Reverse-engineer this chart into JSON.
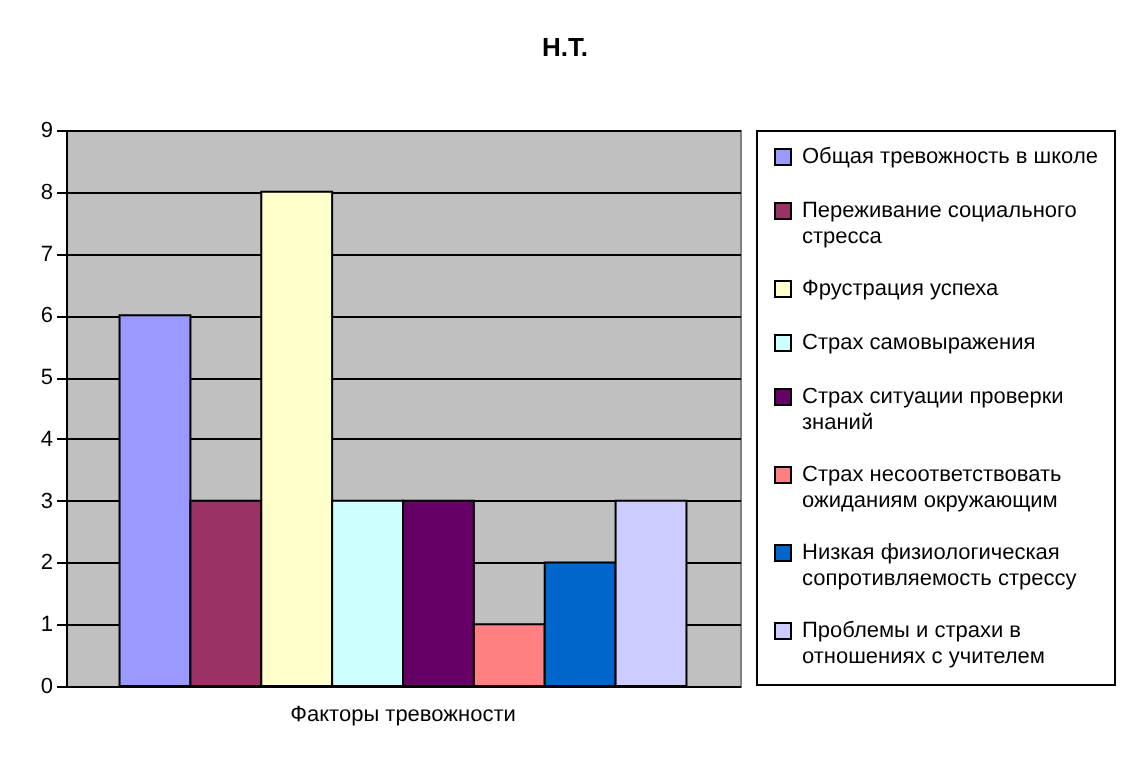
{
  "chart_data": {
    "type": "bar",
    "title": "Н.Т.",
    "categories": [
      "Факторы тревожности"
    ],
    "ylim": [
      0,
      9
    ],
    "yticks": [
      0,
      1,
      2,
      3,
      4,
      5,
      6,
      7,
      8,
      9
    ],
    "grid": "y",
    "legend": "right",
    "series": [
      {
        "name": "Общая тревожность в школе",
        "color": "#9999ff",
        "values": [
          6
        ]
      },
      {
        "name": "Переживание социального стресса",
        "color": "#993366",
        "values": [
          3
        ]
      },
      {
        "name": "Фрустрация успеха",
        "color": "#ffffcc",
        "values": [
          8
        ]
      },
      {
        "name": "Страх самовыражения",
        "color": "#ccffff",
        "values": [
          3
        ]
      },
      {
        "name": "Страх ситуации проверки знаний",
        "color": "#660066",
        "values": [
          3
        ]
      },
      {
        "name": "Страх несоответствовать ожиданиям окружающим",
        "color": "#ff8080",
        "values": [
          1
        ]
      },
      {
        "name": "Низкая физиологическая сопротивляемость стрессу",
        "color": "#0066cc",
        "values": [
          2
        ]
      },
      {
        "name": "Проблемы и страхи в отношениях с учителем",
        "color": "#ccccff",
        "values": [
          3
        ]
      }
    ]
  }
}
